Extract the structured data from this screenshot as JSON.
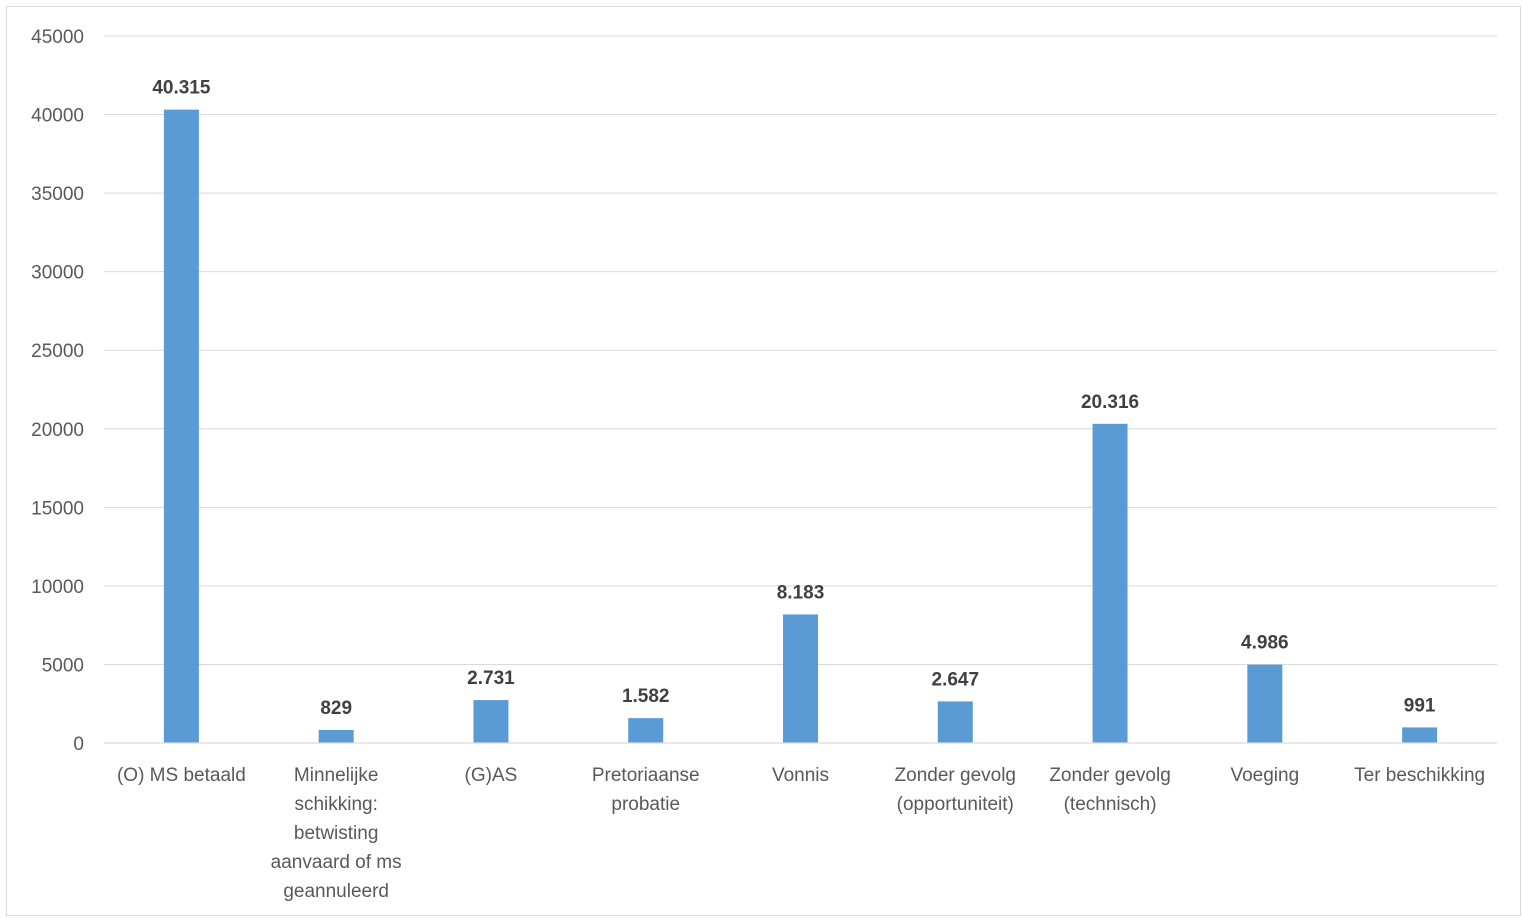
{
  "chart_data": {
    "type": "bar",
    "title": "",
    "xlabel": "",
    "ylabel": "",
    "ylim": [
      0,
      45000
    ],
    "y_ticks": [
      "0",
      "5000",
      "10000",
      "15000",
      "20000",
      "25000",
      "30000",
      "35000",
      "40000",
      "45000"
    ],
    "grid": true,
    "legend": "none",
    "bar_color": "#5b9bd5",
    "categories": [
      "(O) MS betaald",
      "Minnelijke schikking: betwisting aanvaard of ms geannuleerd",
      "(G)AS",
      "Pretoriaanse probatie",
      "Vonnis",
      "Zonder gevolg (opportuniteit)",
      "Zonder gevolg (technisch)",
      "Voeging",
      "Ter beschikking"
    ],
    "category_lines": [
      [
        "(O) MS betaald"
      ],
      [
        "Minnelijke",
        "schikking:",
        "betwisting",
        "aanvaard of ms",
        "geannuleerd"
      ],
      [
        "(G)AS"
      ],
      [
        "Pretoriaanse",
        "probatie"
      ],
      [
        "Vonnis"
      ],
      [
        "Zonder gevolg",
        "(opportuniteit)"
      ],
      [
        "Zonder gevolg",
        "(technisch)"
      ],
      [
        "Voeging"
      ],
      [
        "Ter beschikking"
      ]
    ],
    "values": [
      40315,
      829,
      2731,
      1582,
      8183,
      2647,
      20316,
      4986,
      991
    ],
    "data_labels": [
      "40.315",
      "829",
      "2.731",
      "1.582",
      "8.183",
      "2.647",
      "20.316",
      "4.986",
      "991"
    ]
  }
}
